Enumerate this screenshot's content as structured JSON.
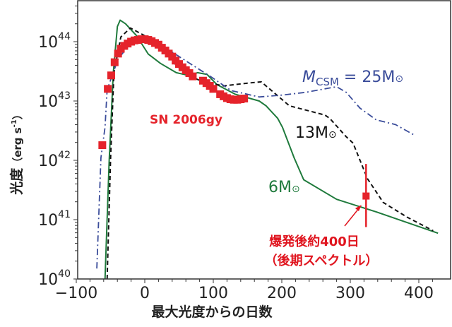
{
  "chart_data": {
    "type": "line",
    "xlabel": "最大光度からの日数",
    "ylabel": {
      "main": "光度",
      "unit_open": "（erg s",
      "unit_exp": "-1",
      "unit_close": "）"
    },
    "xlim": [
      -100,
      430
    ],
    "ylim": [
      1e+40,
      5e+44
    ],
    "yscale": "log",
    "grid": false,
    "x_ticks": [
      "−100",
      "0",
      "100",
      "200",
      "300",
      "400"
    ],
    "x_tick_values": [
      -100,
      0,
      100,
      200,
      300,
      400
    ],
    "y_ticks": [
      {
        "base": "10",
        "exp": "40",
        "value": 1e+40
      },
      {
        "base": "10",
        "exp": "41",
        "value": 1e+41
      },
      {
        "base": "10",
        "exp": "42",
        "value": 1e+42
      },
      {
        "base": "10",
        "exp": "43",
        "value": 1e+43
      },
      {
        "base": "10",
        "exp": "44",
        "value": 1e+44
      }
    ],
    "colors": {
      "observed": "#e5232b",
      "m6": "#1f7a3c",
      "m13": "#111111",
      "m25": "#3a4c9a",
      "annotation": "#e0141e"
    },
    "series": [
      {
        "name": "SN 2006gy",
        "kind": "points",
        "x": [
          -62,
          -54,
          -49,
          -44,
          -39,
          -35,
          -30,
          -25,
          -20,
          -15,
          -10,
          -5,
          0,
          5,
          10,
          15,
          20,
          25,
          30,
          35,
          40,
          45,
          50,
          55,
          60,
          65,
          70,
          85,
          90,
          95,
          100,
          110,
          115,
          120,
          125,
          130,
          135,
          140,
          145
        ],
        "y": [
          1.8e+42,
          1.6e+43,
          2.7e+43,
          4.5e+43,
          6.3e+43,
          7.6e+43,
          8.5e+43,
          9.3e+43,
          1e+44,
          1.05e+44,
          1.07e+44,
          1.1e+44,
          1.1e+44,
          1.07e+44,
          1.02e+44,
          9.5e+43,
          8.9e+43,
          7.9e+43,
          7.1e+43,
          6.3e+43,
          5.6e+43,
          4.8e+43,
          4.2e+43,
          3.7e+43,
          3.3e+43,
          2.95e+43,
          2.6e+43,
          2.2e+43,
          2e+43,
          1.8e+43,
          1.6e+43,
          1.3e+43,
          1.2e+43,
          1.12e+43,
          1.07e+43,
          1.05e+43,
          1.05e+43,
          1.07e+43,
          1.1e+43
        ]
      },
      {
        "name": "SN 2006gy late",
        "kind": "errorbar",
        "x": [
          323
        ],
        "y": [
          2.5e+41
        ],
        "y_err_low": [
          7.5e+40
        ],
        "y_err_high": [
          8.7e+41
        ]
      },
      {
        "name": "6M⊙",
        "kind": "solid",
        "x": [
          -58,
          -52,
          -46,
          -40,
          -36,
          -28,
          -12,
          5,
          23,
          46,
          64,
          77,
          91,
          105,
          132,
          167,
          177,
          194,
          201,
          218,
          232,
          280,
          338,
          428
        ],
        "y": [
          1e+40,
          1e+42,
          3e+43,
          1.8e+44,
          2.3e+44,
          2e+44,
          1.26e+44,
          6.2e+43,
          4.3e+43,
          3e+43,
          2.7e+43,
          3e+43,
          2.8e+43,
          1.9e+43,
          1.3e+43,
          1e+43,
          8.3e+42,
          5.1e+42,
          3.6e+42,
          1.1e+42,
          4.7e+41,
          2.2e+41,
          1.35e+41,
          5.9e+40
        ]
      },
      {
        "name": "13M⊙",
        "kind": "dashed",
        "x": [
          -55,
          -50,
          -45,
          -35,
          -21,
          5,
          29,
          46,
          64,
          85,
          115,
          150,
          170,
          188,
          211,
          263,
          270,
          294,
          304,
          325,
          348,
          383,
          421
        ],
        "y": [
          1e+40,
          1e+42,
          3e+43,
          1.2e+44,
          1.7e+44,
          1.17e+44,
          6.8e+43,
          4e+43,
          2.7e+43,
          2.1e+43,
          1.8e+43,
          2e+43,
          2.1e+43,
          1.4e+43,
          8.3e+42,
          5.8e+42,
          5.1e+42,
          2.5e+42,
          1.95e+42,
          4.9e+41,
          1.95e+41,
          1.1e+41,
          6.5e+40
        ]
      },
      {
        "name": "M_CSM = 25M⊙",
        "kind": "dashdot",
        "x": [
          -70,
          -64,
          -58,
          -55,
          -39,
          -19,
          5,
          39,
          70,
          98,
          126,
          167,
          201,
          235,
          280,
          294,
          314,
          338,
          366,
          395
        ],
        "y": [
          1.5e+40,
          1.1e+42,
          3.6e+42,
          1.55e+43,
          5.1e+43,
          1e+44,
          1.1e+44,
          6.8e+43,
          4e+43,
          2.5e+43,
          1.5e+43,
          1.17e+43,
          1.26e+43,
          1.4e+43,
          1.74e+43,
          1.4e+43,
          7.6e+42,
          4.8e+42,
          4e+42,
          2.6e+42
        ]
      }
    ],
    "labels": {
      "sn": "SN 2006gy",
      "m25": {
        "m": "M",
        "sub": "CSM",
        "rest": " = 25M",
        "sun": "⊙"
      },
      "m13": {
        "rest": "13M",
        "sun": "⊙"
      },
      "m6": {
        "rest": "6M",
        "sun": "⊙"
      },
      "annotation_line1": "爆発後約400日",
      "annotation_line2": "（後期スペクトル）"
    }
  }
}
